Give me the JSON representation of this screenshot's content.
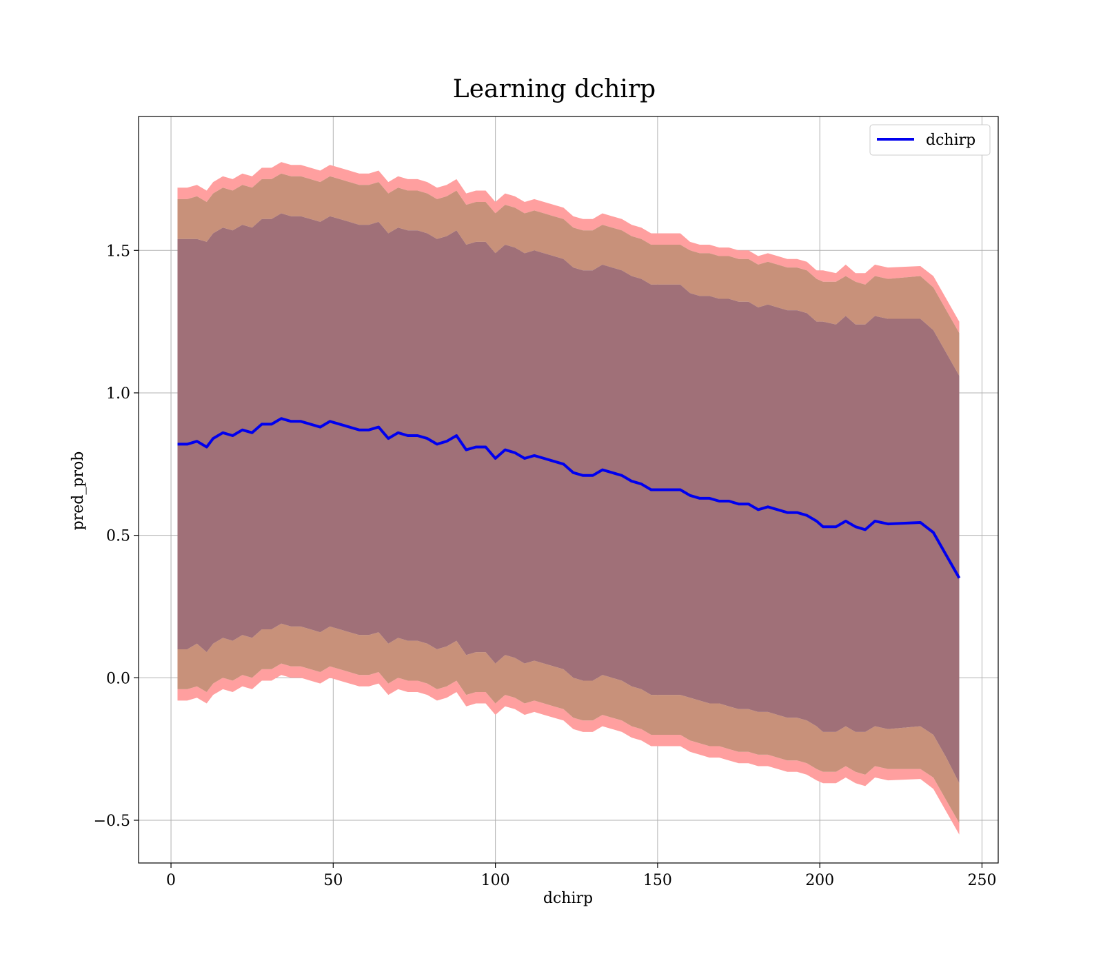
{
  "chart_data": {
    "type": "line",
    "title": "Learning dchirp",
    "xlabel": "dchirp",
    "ylabel": "pred_prob",
    "xlim": [
      -10,
      255
    ],
    "ylim": [
      -0.65,
      1.97
    ],
    "xticks": [
      0,
      50,
      100,
      150,
      200,
      250
    ],
    "yticks": [
      -0.5,
      0.0,
      0.5,
      1.0,
      1.5
    ],
    "xtick_labels": [
      "0",
      "50",
      "100",
      "150",
      "200",
      "250"
    ],
    "ytick_labels": [
      "−0.5",
      "0.0",
      "0.5",
      "1.0",
      "1.5"
    ],
    "grid": true,
    "legend": {
      "position": "top-right",
      "entries": [
        "dchirp"
      ]
    },
    "colors": {
      "line": "#0000ee",
      "band_outer": "#ff9f9f",
      "band_middle": "#c8917a",
      "band_inner": "#a07078"
    },
    "series": [
      {
        "name": "dchirp",
        "x": [
          2,
          5,
          8,
          11,
          13,
          16,
          19,
          22,
          25,
          28,
          31,
          34,
          37,
          40,
          43,
          46,
          49,
          52,
          55,
          58,
          61,
          64,
          67,
          70,
          73,
          76,
          79,
          82,
          85,
          88,
          91,
          94,
          97,
          100,
          103,
          106,
          109,
          112,
          115,
          118,
          121,
          124,
          127,
          130,
          133,
          136,
          139,
          142,
          145,
          148,
          151,
          154,
          157,
          160,
          163,
          166,
          169,
          172,
          175,
          178,
          181,
          184,
          187,
          190,
          193,
          196,
          199,
          201,
          205,
          208,
          211,
          214,
          217,
          221,
          231,
          235,
          239,
          243
        ],
        "y": [
          0.82,
          0.82,
          0.83,
          0.81,
          0.84,
          0.86,
          0.85,
          0.87,
          0.86,
          0.89,
          0.89,
          0.91,
          0.9,
          0.9,
          0.89,
          0.88,
          0.9,
          0.89,
          0.88,
          0.87,
          0.87,
          0.88,
          0.84,
          0.86,
          0.85,
          0.85,
          0.84,
          0.82,
          0.83,
          0.85,
          0.8,
          0.81,
          0.81,
          0.77,
          0.8,
          0.79,
          0.77,
          0.78,
          0.77,
          0.76,
          0.75,
          0.72,
          0.71,
          0.71,
          0.73,
          0.72,
          0.71,
          0.69,
          0.68,
          0.66,
          0.66,
          0.66,
          0.66,
          0.64,
          0.63,
          0.63,
          0.62,
          0.62,
          0.61,
          0.61,
          0.59,
          0.6,
          0.59,
          0.58,
          0.58,
          0.57,
          0.55,
          0.53,
          0.53,
          0.55,
          0.53,
          0.52,
          0.55,
          0.54,
          0.545,
          0.51,
          0.43,
          0.35
        ]
      }
    ],
    "bands": {
      "inner_upper": [
        1.54,
        1.54,
        1.54,
        1.53,
        1.56,
        1.58,
        1.57,
        1.59,
        1.58,
        1.61,
        1.61,
        1.63,
        1.62,
        1.62,
        1.61,
        1.6,
        1.62,
        1.61,
        1.6,
        1.59,
        1.59,
        1.6,
        1.56,
        1.58,
        1.57,
        1.57,
        1.56,
        1.54,
        1.55,
        1.57,
        1.52,
        1.53,
        1.53,
        1.49,
        1.52,
        1.51,
        1.49,
        1.5,
        1.49,
        1.48,
        1.47,
        1.44,
        1.43,
        1.43,
        1.45,
        1.44,
        1.43,
        1.41,
        1.4,
        1.38,
        1.38,
        1.38,
        1.38,
        1.35,
        1.34,
        1.34,
        1.33,
        1.33,
        1.32,
        1.32,
        1.3,
        1.31,
        1.3,
        1.29,
        1.29,
        1.28,
        1.25,
        1.25,
        1.24,
        1.27,
        1.24,
        1.24,
        1.27,
        1.26,
        1.26,
        1.22,
        1.14,
        1.06
      ],
      "inner_lower": [
        0.1,
        0.1,
        0.12,
        0.09,
        0.12,
        0.14,
        0.13,
        0.15,
        0.14,
        0.17,
        0.17,
        0.19,
        0.18,
        0.18,
        0.17,
        0.16,
        0.18,
        0.17,
        0.16,
        0.15,
        0.15,
        0.16,
        0.12,
        0.14,
        0.13,
        0.13,
        0.12,
        0.1,
        0.11,
        0.13,
        0.08,
        0.09,
        0.09,
        0.05,
        0.08,
        0.07,
        0.05,
        0.06,
        0.05,
        0.04,
        0.03,
        0.0,
        -0.01,
        -0.01,
        0.01,
        0.0,
        -0.01,
        -0.03,
        -0.04,
        -0.06,
        -0.06,
        -0.06,
        -0.06,
        -0.07,
        -0.08,
        -0.09,
        -0.09,
        -0.1,
        -0.11,
        -0.11,
        -0.12,
        -0.12,
        -0.13,
        -0.14,
        -0.14,
        -0.15,
        -0.17,
        -0.19,
        -0.19,
        -0.17,
        -0.19,
        -0.19,
        -0.17,
        -0.18,
        -0.17,
        -0.2,
        -0.28,
        -0.37
      ],
      "middle_upper": [
        1.68,
        1.68,
        1.69,
        1.67,
        1.7,
        1.72,
        1.71,
        1.73,
        1.72,
        1.75,
        1.75,
        1.77,
        1.76,
        1.76,
        1.75,
        1.74,
        1.76,
        1.75,
        1.74,
        1.73,
        1.73,
        1.74,
        1.7,
        1.72,
        1.71,
        1.71,
        1.7,
        1.68,
        1.69,
        1.71,
        1.66,
        1.67,
        1.67,
        1.63,
        1.66,
        1.65,
        1.63,
        1.64,
        1.63,
        1.62,
        1.61,
        1.58,
        1.57,
        1.57,
        1.59,
        1.58,
        1.57,
        1.55,
        1.54,
        1.52,
        1.52,
        1.52,
        1.52,
        1.5,
        1.49,
        1.49,
        1.48,
        1.48,
        1.47,
        1.47,
        1.45,
        1.46,
        1.45,
        1.44,
        1.44,
        1.43,
        1.4,
        1.39,
        1.39,
        1.41,
        1.39,
        1.38,
        1.41,
        1.4,
        1.41,
        1.37,
        1.29,
        1.21
      ],
      "middle_lower": [
        -0.04,
        -0.04,
        -0.03,
        -0.05,
        -0.02,
        0.0,
        -0.01,
        0.01,
        0.0,
        0.03,
        0.03,
        0.05,
        0.04,
        0.04,
        0.03,
        0.02,
        0.04,
        0.03,
        0.02,
        0.01,
        0.01,
        0.02,
        -0.02,
        0.0,
        -0.01,
        -0.01,
        -0.02,
        -0.04,
        -0.03,
        -0.01,
        -0.06,
        -0.05,
        -0.05,
        -0.09,
        -0.06,
        -0.07,
        -0.09,
        -0.08,
        -0.09,
        -0.1,
        -0.11,
        -0.14,
        -0.15,
        -0.15,
        -0.13,
        -0.14,
        -0.15,
        -0.17,
        -0.18,
        -0.2,
        -0.2,
        -0.2,
        -0.2,
        -0.22,
        -0.23,
        -0.24,
        -0.24,
        -0.25,
        -0.26,
        -0.26,
        -0.27,
        -0.27,
        -0.28,
        -0.29,
        -0.29,
        -0.3,
        -0.32,
        -0.33,
        -0.33,
        -0.31,
        -0.33,
        -0.34,
        -0.31,
        -0.32,
        -0.32,
        -0.35,
        -0.43,
        -0.51
      ],
      "outer_upper": [
        1.72,
        1.72,
        1.73,
        1.71,
        1.74,
        1.76,
        1.75,
        1.77,
        1.76,
        1.79,
        1.79,
        1.81,
        1.8,
        1.8,
        1.79,
        1.78,
        1.8,
        1.79,
        1.78,
        1.77,
        1.77,
        1.78,
        1.74,
        1.76,
        1.75,
        1.75,
        1.74,
        1.72,
        1.73,
        1.75,
        1.7,
        1.71,
        1.71,
        1.67,
        1.7,
        1.69,
        1.67,
        1.68,
        1.67,
        1.66,
        1.65,
        1.62,
        1.61,
        1.61,
        1.63,
        1.62,
        1.61,
        1.59,
        1.58,
        1.56,
        1.56,
        1.56,
        1.56,
        1.53,
        1.52,
        1.52,
        1.51,
        1.51,
        1.5,
        1.5,
        1.48,
        1.49,
        1.48,
        1.47,
        1.47,
        1.46,
        1.43,
        1.43,
        1.42,
        1.45,
        1.42,
        1.42,
        1.45,
        1.44,
        1.445,
        1.41,
        1.33,
        1.25
      ],
      "outer_lower": [
        -0.08,
        -0.08,
        -0.07,
        -0.09,
        -0.06,
        -0.04,
        -0.05,
        -0.03,
        -0.04,
        -0.01,
        -0.01,
        0.01,
        0.0,
        0.0,
        -0.01,
        -0.02,
        0.0,
        -0.01,
        -0.02,
        -0.03,
        -0.03,
        -0.02,
        -0.06,
        -0.04,
        -0.05,
        -0.05,
        -0.06,
        -0.08,
        -0.07,
        -0.05,
        -0.1,
        -0.09,
        -0.09,
        -0.13,
        -0.1,
        -0.11,
        -0.13,
        -0.12,
        -0.13,
        -0.14,
        -0.15,
        -0.18,
        -0.19,
        -0.19,
        -0.17,
        -0.18,
        -0.19,
        -0.21,
        -0.22,
        -0.24,
        -0.24,
        -0.24,
        -0.24,
        -0.26,
        -0.27,
        -0.28,
        -0.28,
        -0.29,
        -0.3,
        -0.3,
        -0.31,
        -0.31,
        -0.32,
        -0.33,
        -0.33,
        -0.34,
        -0.36,
        -0.37,
        -0.37,
        -0.35,
        -0.37,
        -0.38,
        -0.35,
        -0.36,
        -0.355,
        -0.39,
        -0.47,
        -0.55
      ]
    }
  }
}
